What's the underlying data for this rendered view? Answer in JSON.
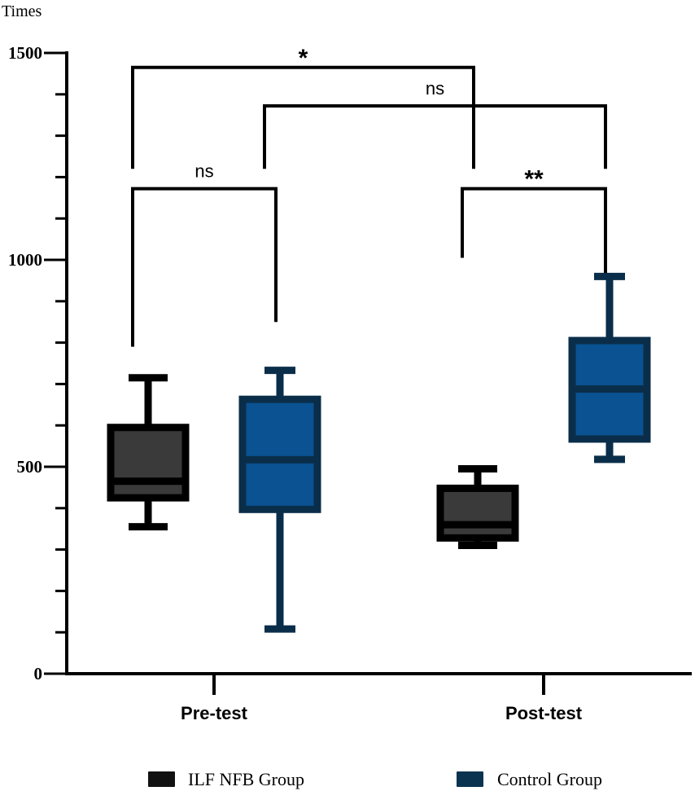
{
  "chart_data": {
    "type": "box",
    "ylabel": "Times",
    "ylim": [
      0,
      1500
    ],
    "y_ticks": [
      0,
      500,
      1000,
      1500
    ],
    "y_tick_labels": [
      "0",
      "500",
      "1000",
      "1500"
    ],
    "categories": [
      "Pre-test",
      "Post-test"
    ],
    "series": [
      {
        "name": "ILF NFB Group",
        "color": "#3a3a3a",
        "edge_color": "#000000",
        "boxes": [
          {
            "category": "Pre-test",
            "min": 355,
            "q1": 425,
            "median": 465,
            "q3": 595,
            "max": 715
          },
          {
            "category": "Post-test",
            "min": 310,
            "q1": 328,
            "median": 360,
            "q3": 448,
            "max": 495
          }
        ]
      },
      {
        "name": "Control Group",
        "color": "#0a5291",
        "edge_color": "#0a2e4a",
        "boxes": [
          {
            "category": "Pre-test",
            "min": 108,
            "q1": 397,
            "median": 517,
            "q3": 663,
            "max": 733
          },
          {
            "category": "Post-test",
            "min": 518,
            "q1": 567,
            "median": 688,
            "q3": 805,
            "max": 960
          }
        ]
      }
    ],
    "significance": [
      {
        "label": "*",
        "from": {
          "category": "Pre-test",
          "series": "ILF NFB Group"
        },
        "to": {
          "category": "Post-test",
          "series": "ILF NFB Group"
        },
        "bar_y": 1465,
        "left_end": 1220,
        "right_end": 1220
      },
      {
        "label": "ns",
        "from": {
          "category": "Pre-test",
          "series": "Control Group"
        },
        "to": {
          "category": "Post-test",
          "series": "Control Group"
        },
        "bar_y": 1372,
        "left_end": 1220,
        "right_end": 1220
      },
      {
        "label": "ns",
        "from": {
          "category": "Pre-test",
          "series": "ILF NFB Group"
        },
        "to": {
          "category": "Pre-test",
          "series": "Control Group"
        },
        "bar_y": 1172,
        "left_end": 790,
        "right_end": 850
      },
      {
        "label": "**",
        "from": {
          "category": "Post-test",
          "series": "ILF NFB Group"
        },
        "to": {
          "category": "Post-test",
          "series": "Control Group"
        },
        "bar_y": 1172,
        "left_end": 1005,
        "right_end": 965
      }
    ],
    "legend": {
      "placement": "bottom",
      "entries": [
        "ILF NFB Group",
        "Control Group"
      ]
    }
  }
}
